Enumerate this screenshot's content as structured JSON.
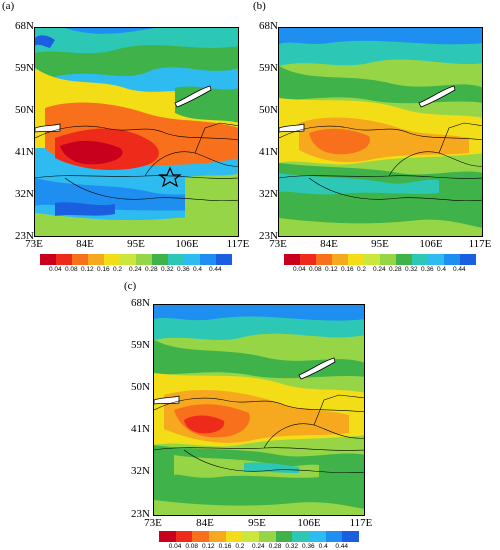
{
  "panels": [
    {
      "label": "(a)"
    },
    {
      "label": "(b)"
    },
    {
      "label": "(c)"
    }
  ],
  "lat_labels": [
    "68N",
    "59N",
    "50N",
    "41N",
    "32N",
    "23N"
  ],
  "lon_labels": [
    "73E",
    "84E",
    "95E",
    "106E",
    "117E"
  ],
  "colorbar": {
    "colors": [
      "#c8001e",
      "#ee2a1a",
      "#f8701b",
      "#f6a91f",
      "#f3dd17",
      "#cbe63c",
      "#96d646",
      "#3fb34a",
      "#2cc7b5",
      "#2ebbf0",
      "#1e8ef0",
      "#1a5fe0"
    ],
    "ticks": [
      "0.04",
      "0.08",
      "0.12",
      "0.16",
      "0.2",
      "0.24",
      "0.28",
      "0.32",
      "0.36",
      "0.4",
      "0.44"
    ]
  },
  "station_marker": "star-icon"
}
